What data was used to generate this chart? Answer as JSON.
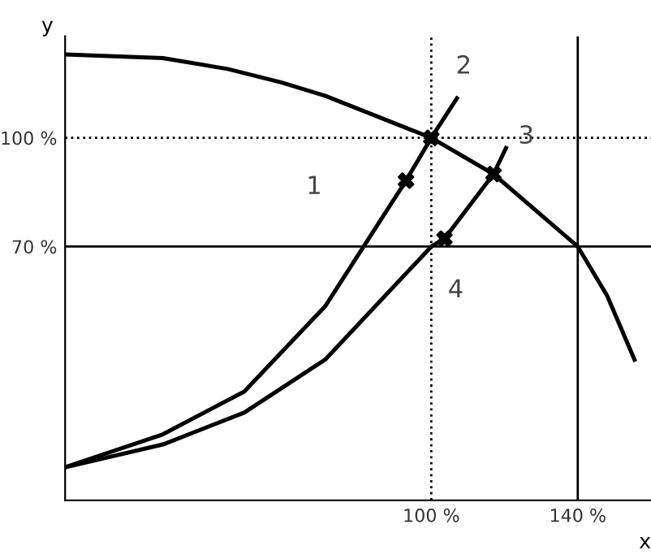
{
  "chart_data": {
    "type": "line",
    "xlabel": "x",
    "ylabel": "y",
    "xlim": [
      0,
      160
    ],
    "ylim": [
      0,
      128
    ],
    "xticks": [
      {
        "value": 100,
        "label": "100 %"
      },
      {
        "value": 140,
        "label": "140 %"
      }
    ],
    "yticks": [
      {
        "value": 70,
        "label": "70 %"
      },
      {
        "value": 100,
        "label": "100 %"
      }
    ],
    "grid": false,
    "legend": false,
    "series": [
      {
        "color": "#000000",
        "x": [
          0,
          26.7,
          44.4,
          59,
          71,
          100,
          117,
          140,
          148,
          155.5
        ],
        "values": [
          123,
          122,
          119,
          115.3,
          111.6,
          100,
          90,
          70,
          56.5,
          38.8
        ]
      },
      {
        "color": "#000000",
        "x": [
          0,
          26.7,
          48.9,
          71,
          93.1,
          100,
          107
        ],
        "values": [
          9.1,
          18.2,
          30,
          53.5,
          88.2,
          100,
          110.9
        ]
      },
      {
        "color": "#000000",
        "x": [
          0,
          26.7,
          48.9,
          71,
          100,
          103.6,
          117,
          120.4
        ],
        "values": [
          9.1,
          15.4,
          24.2,
          38.8,
          70,
          72.2,
          90,
          97.2
        ]
      },
      {
        "type": "scatter",
        "color": "#000000",
        "marker": "cross",
        "x": [
          93.1,
          100,
          103.6,
          117
        ],
        "values": [
          88.2,
          100,
          72.2,
          90
        ]
      }
    ],
    "ref_lines": [
      {
        "axis": "x",
        "value": 100,
        "line_style": "dotted",
        "color": "#000000"
      },
      {
        "axis": "y",
        "value": 100,
        "line_style": "dotted",
        "color": "#000000"
      },
      {
        "axis": "y",
        "value": 70,
        "line_style": "solid",
        "color": "#000000"
      },
      {
        "axis": "x",
        "value": 140,
        "line_style": "solid",
        "color": "#000000"
      }
    ],
    "annotations": [
      "1",
      {
        "text": "2",
        "x": 107,
        "y": 110.9
      },
      {
        "text": "3",
        "x": 120.4,
        "y": 97.2
      },
      {
        "text": "4",
        "x": 103.6,
        "y": 72.2
      }
    ]
  }
}
